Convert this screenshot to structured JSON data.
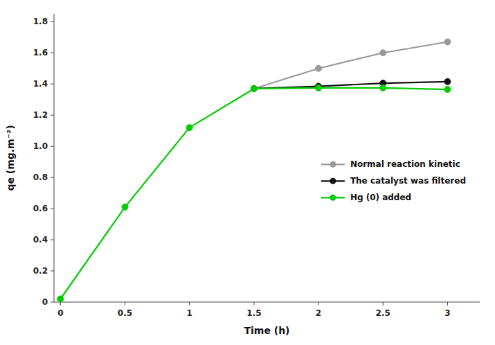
{
  "chart_data": {
    "type": "line",
    "x_label": "Time (h)",
    "y_label": "qe (mg.m⁻²)",
    "series": [
      {
        "name": "Normal reaction kinetic",
        "color": "#999999",
        "marker": "circle",
        "x": [
          1.5,
          2,
          2.5,
          3
        ],
        "values": [
          1.37,
          1.5,
          1.6,
          1.67
        ]
      },
      {
        "name": "The catalyst was filtered",
        "color": "#111111",
        "marker": "circle",
        "x": [
          1.5,
          2,
          2.5,
          3
        ],
        "values": [
          1.37,
          1.385,
          1.405,
          1.415
        ]
      },
      {
        "name": "Hg (0) added",
        "color": "#00cc00",
        "marker": "circle",
        "x": [
          0,
          0.5,
          1,
          1.5,
          2,
          2.5,
          3
        ],
        "values": [
          0.02,
          0.61,
          1.12,
          1.37,
          1.375,
          1.375,
          1.365
        ]
      }
    ],
    "xlim": [
      -0.05,
      3.25
    ],
    "ylim": [
      0,
      1.85
    ],
    "xticks": [
      0,
      0.5,
      1,
      1.5,
      2,
      2.5,
      3
    ],
    "yticks": [
      0,
      0.2,
      0.4,
      0.6,
      0.8,
      {
        "value": 1.0,
        "label": "1.0"
      },
      1.2,
      1.4,
      1.6,
      1.8
    ],
    "grid": false,
    "legend": "right"
  }
}
